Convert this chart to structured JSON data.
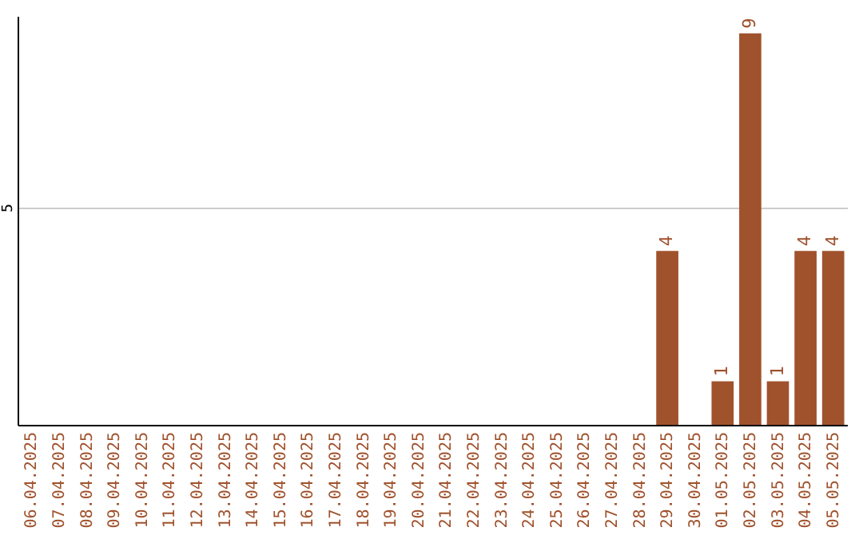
{
  "chart_data": {
    "type": "bar",
    "categories": [
      "06.04.2025",
      "07.04.2025",
      "08.04.2025",
      "09.04.2025",
      "10.04.2025",
      "11.04.2025",
      "12.04.2025",
      "13.04.2025",
      "14.04.2025",
      "15.04.2025",
      "16.04.2025",
      "17.04.2025",
      "18.04.2025",
      "19.04.2025",
      "20.04.2025",
      "21.04.2025",
      "22.04.2025",
      "23.04.2025",
      "24.04.2025",
      "25.04.2025",
      "26.04.2025",
      "27.04.2025",
      "28.04.2025",
      "29.04.2025",
      "30.04.2025",
      "01.05.2025",
      "02.05.2025",
      "03.05.2025",
      "04.05.2025",
      "05.05.2025"
    ],
    "values": [
      null,
      null,
      null,
      null,
      null,
      null,
      null,
      null,
      null,
      null,
      null,
      null,
      null,
      null,
      null,
      null,
      null,
      null,
      null,
      null,
      null,
      null,
      null,
      4,
      null,
      1,
      9,
      1,
      4,
      4
    ],
    "color": "#a0522d",
    "ylim": [
      0,
      9.4
    ],
    "yticks": [
      5
    ],
    "grid": "y",
    "data_labels": true
  }
}
